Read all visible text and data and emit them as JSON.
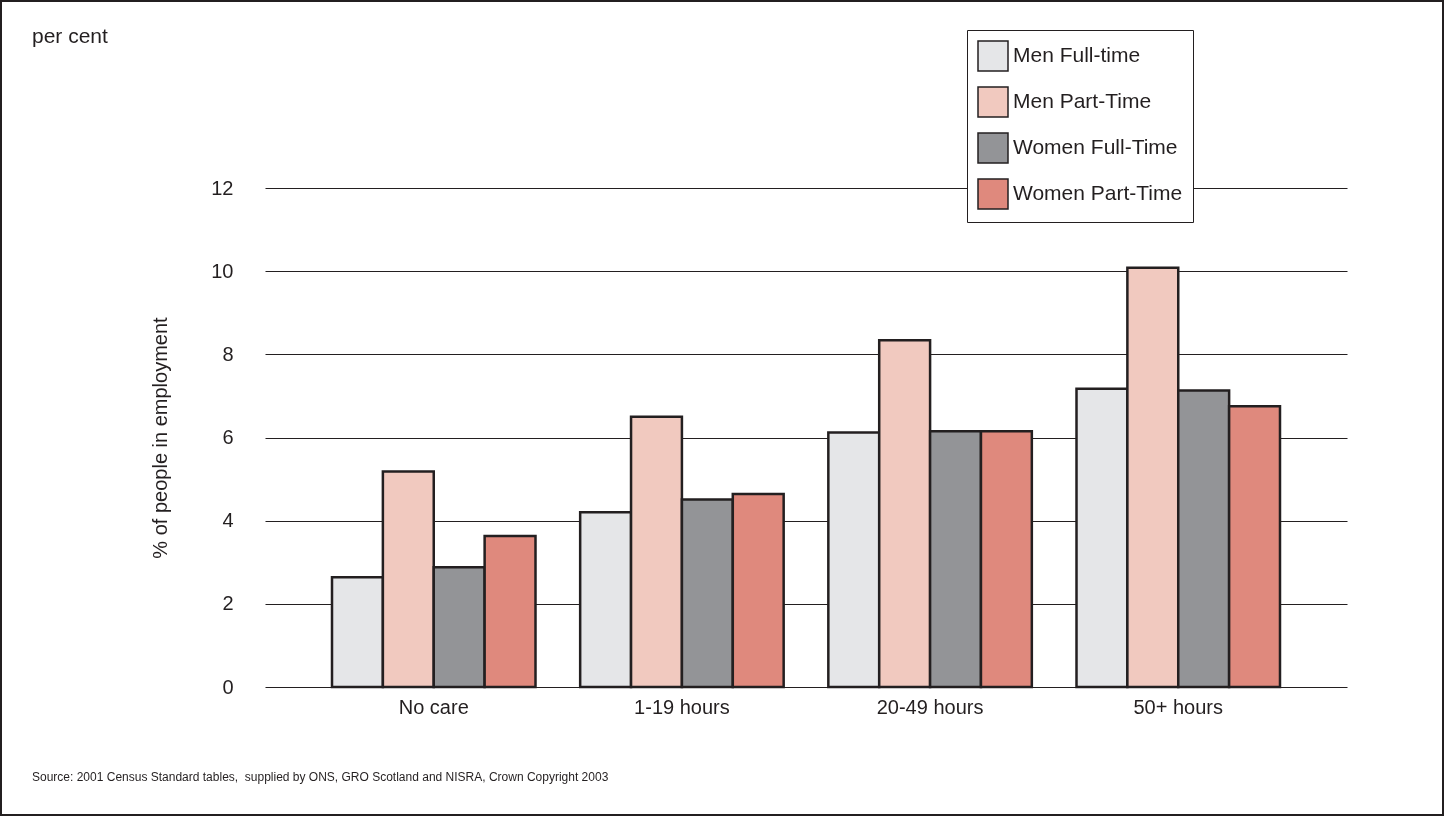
{
  "chart_data": {
    "type": "bar",
    "ylabel": "% of people in employment",
    "categories": [
      "No care",
      "1-19 hours",
      "20-49 hours",
      "50+ hours"
    ],
    "series": [
      {
        "name": "Men Full-time",
        "color": "#e5e6e8",
        "values": [
          2.64,
          4.2,
          6.12,
          7.17
        ]
      },
      {
        "name": "Men Part-Time",
        "color": "#f1c9bf",
        "values": [
          5.18,
          6.5,
          8.34,
          10.08
        ]
      },
      {
        "name": "Women Full-Time",
        "color": "#939497",
        "values": [
          2.88,
          4.51,
          6.15,
          7.13
        ]
      },
      {
        "name": "Women Part-Time",
        "color": "#df897d",
        "values": [
          3.63,
          4.64,
          6.15,
          6.75
        ]
      }
    ],
    "ylim": [
      0,
      12
    ],
    "yticks": [
      0,
      2,
      4,
      6,
      8,
      10,
      12
    ],
    "grid": "y",
    "legend": "top right",
    "annotations": [
      "per cent",
      "Source: 2001 Census Standard tables,  supplied by ONS, GRO Scotland and NISRA, Crown Copyright 2003"
    ]
  }
}
